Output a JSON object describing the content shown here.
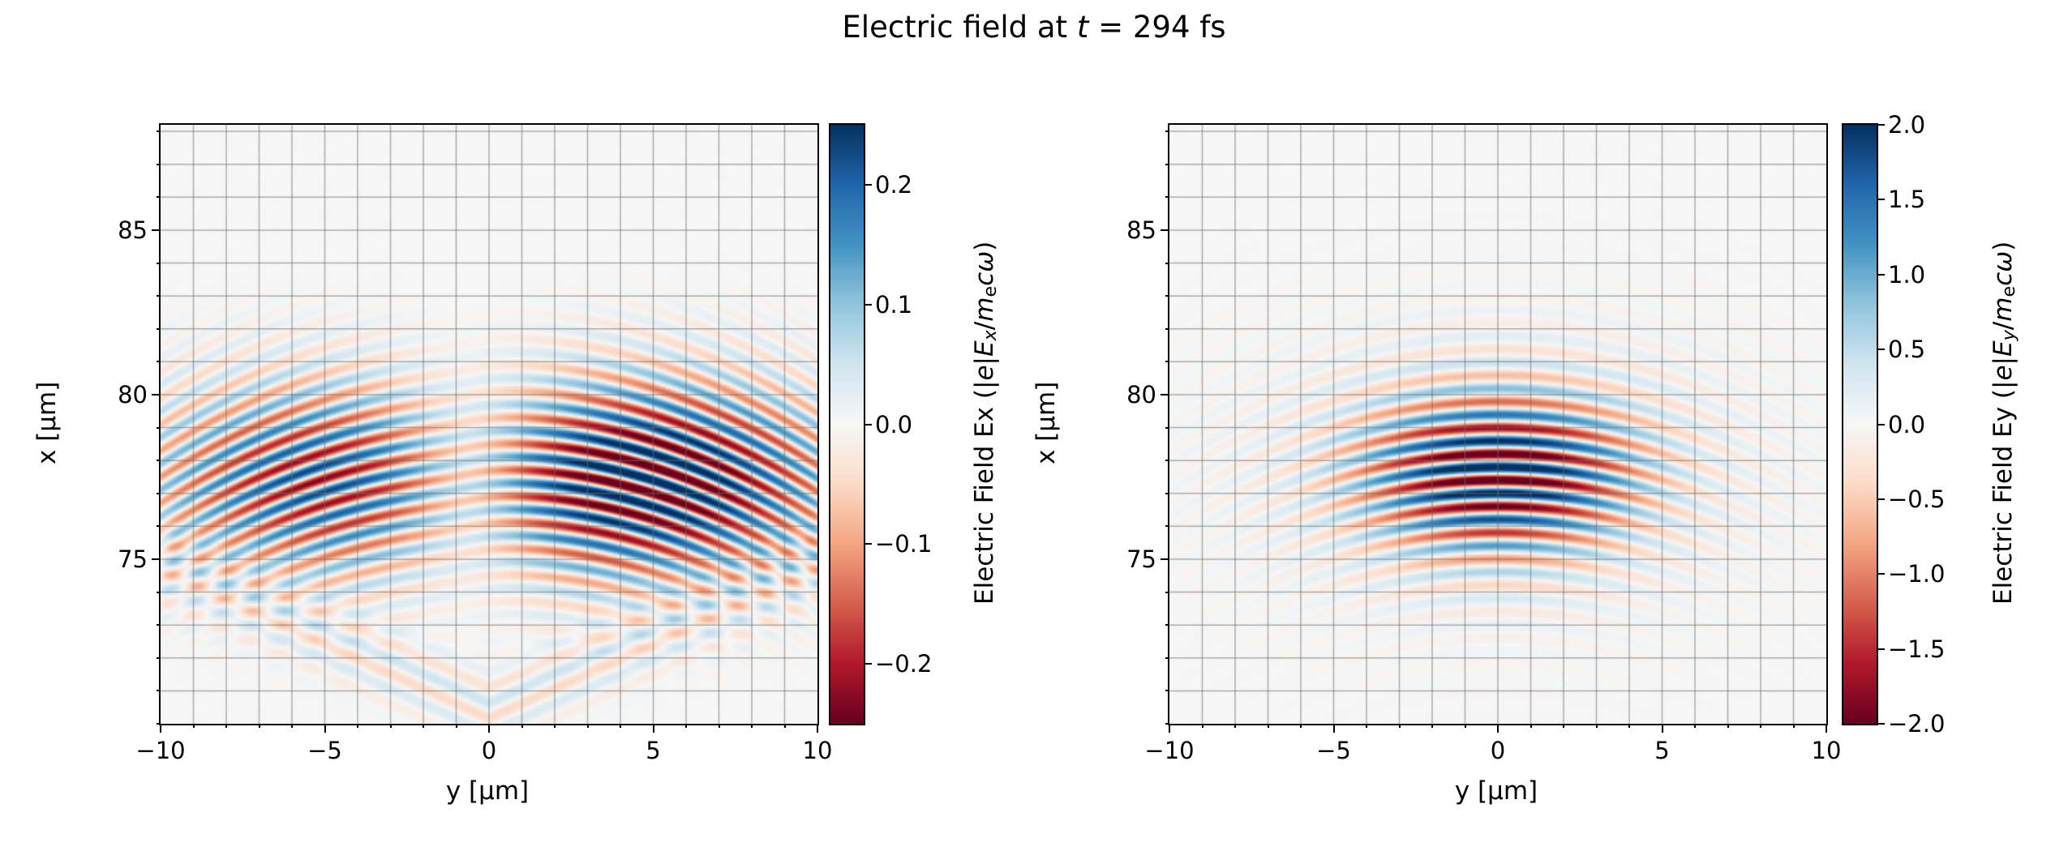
{
  "figure": {
    "background": "#ffffff"
  },
  "chart_data": {
    "type": "heatmap",
    "title": "Electric field at t = 294 fs",
    "title_parts": {
      "prefix": "Electric field at ",
      "variable": "t",
      "suffix": " = 294 fs"
    },
    "time_fs": 294,
    "colormap": "RdBu",
    "colormap_anchors": [
      "#67001f",
      "#b2182b",
      "#d6604d",
      "#f4a582",
      "#fddbc7",
      "#f7f7f7",
      "#d1e5f0",
      "#92c5de",
      "#4393c3",
      "#2166ac",
      "#053061"
    ],
    "grid": {
      "show": true,
      "step_um": 1,
      "color": "rgba(110,110,110,0.55)"
    },
    "plots": [
      {
        "field": "Ex",
        "xlabel": "y [μm]",
        "ylabel": "x [μm]",
        "xlim": [
          -10,
          10
        ],
        "ylim": [
          70,
          88.2
        ],
        "xticks": [
          {
            "value": -10,
            "label": "−10"
          },
          {
            "value": -5,
            "label": "−5"
          },
          {
            "value": 0,
            "label": "0"
          },
          {
            "value": 5,
            "label": "5"
          },
          {
            "value": 10,
            "label": "10"
          }
        ],
        "yticks": [
          {
            "value": 85,
            "label": "85"
          },
          {
            "value": 80,
            "label": "80"
          },
          {
            "value": 75,
            "label": "75"
          }
        ],
        "colorbar": {
          "vmin": -0.25,
          "vmax": 0.25,
          "ticks": [
            {
              "value": 0.2,
              "label": "0.2"
            },
            {
              "value": 0.1,
              "label": "0.1"
            },
            {
              "value": 0.0,
              "label": "0.0"
            },
            {
              "value": -0.1,
              "label": "−0.1"
            },
            {
              "value": -0.2,
              "label": "−0.2"
            }
          ],
          "label_parts": {
            "prefix": "Electric Field Ex (|",
            "e": "e",
            "bar": "|",
            "E": "E",
            "E_sub": "x",
            "slash": "/",
            "m": "m",
            "m_sub": "e",
            "c_omega": "cω",
            "suffix": ")"
          }
        },
        "pattern": {
          "pulse_center_x_um": 77.4,
          "pulse_center_y_um": 0,
          "sigma_x_um": 2.1,
          "sigma_y_um": 5.0,
          "wavelength_um": 0.8,
          "peak_amplitude": 0.27,
          "wavefront_curvature_um": 16,
          "symmetry": "odd_in_y",
          "wake_x0_um": 70.4,
          "wake_slope": 0.45,
          "wake_amplitude": 0.05
        }
      },
      {
        "field": "Ey",
        "xlabel": "y [μm]",
        "ylabel": "x [μm]",
        "xlim": [
          -10,
          10
        ],
        "ylim": [
          70,
          88.2
        ],
        "xticks": [
          {
            "value": -10,
            "label": "−10"
          },
          {
            "value": -5,
            "label": "−5"
          },
          {
            "value": 0,
            "label": "0"
          },
          {
            "value": 5,
            "label": "5"
          },
          {
            "value": 10,
            "label": "10"
          }
        ],
        "yticks": [
          {
            "value": 85,
            "label": "85"
          },
          {
            "value": 80,
            "label": "80"
          },
          {
            "value": 75,
            "label": "75"
          }
        ],
        "colorbar": {
          "vmin": -2.0,
          "vmax": 2.0,
          "ticks": [
            {
              "value": 2.0,
              "label": "2.0"
            },
            {
              "value": 1.5,
              "label": "1.5"
            },
            {
              "value": 1.0,
              "label": "1.0"
            },
            {
              "value": 0.5,
              "label": "0.5"
            },
            {
              "value": 0.0,
              "label": "0.0"
            },
            {
              "value": -0.5,
              "label": "−0.5"
            },
            {
              "value": -1.0,
              "label": "−1.0"
            },
            {
              "value": -1.5,
              "label": "−1.5"
            },
            {
              "value": -2.0,
              "label": "−2.0"
            }
          ],
          "label_parts": {
            "prefix": "Electric Field Ey (|",
            "e": "e",
            "bar": "|",
            "E": "E",
            "E_sub": "y",
            "slash": "/",
            "m": "m",
            "m_sub": "e",
            "c_omega": "cω",
            "suffix": ")"
          }
        },
        "pattern": {
          "pulse_center_x_um": 77.6,
          "pulse_center_y_um": 0,
          "sigma_x_um": 1.7,
          "sigma_y_um": 2.9,
          "wavelength_um": 0.8,
          "peak_amplitude": 2.3,
          "wavefront_curvature_um": 16,
          "symmetry": "even_in_y",
          "halo_amplitude": 0.18
        }
      }
    ]
  }
}
